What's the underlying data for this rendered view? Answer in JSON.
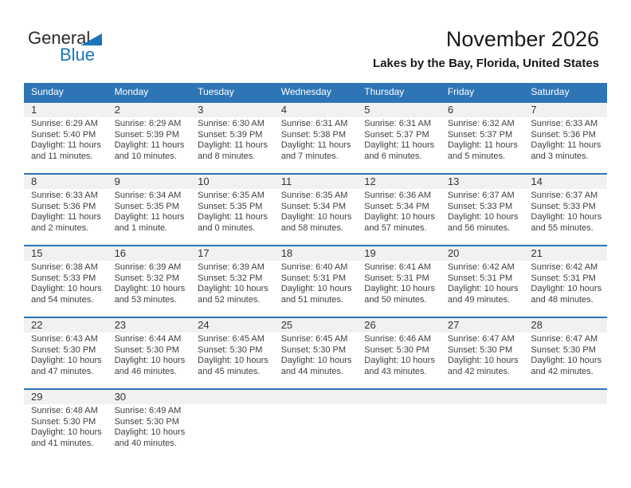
{
  "header": {
    "logo": {
      "line1": "General",
      "line2": "Blue"
    },
    "title": "November 2026",
    "subtitle": "Lakes by the Bay, Florida, United States"
  },
  "colors": {
    "header_blue": "#2E75B6",
    "band_gray": "#F1F1F1",
    "logo_blue": "#1B75BC",
    "body_text": "#3F3F3F"
  },
  "calendar": {
    "weekday_headers": [
      "Sunday",
      "Monday",
      "Tuesday",
      "Wednesday",
      "Thursday",
      "Friday",
      "Saturday"
    ],
    "weeks": [
      [
        {
          "day": "1",
          "lines": [
            "Sunrise: 6:29 AM",
            "Sunset: 5:40 PM",
            "Daylight: 11 hours",
            "and 11 minutes."
          ]
        },
        {
          "day": "2",
          "lines": [
            "Sunrise: 6:29 AM",
            "Sunset: 5:39 PM",
            "Daylight: 11 hours",
            "and 10 minutes."
          ]
        },
        {
          "day": "3",
          "lines": [
            "Sunrise: 6:30 AM",
            "Sunset: 5:39 PM",
            "Daylight: 11 hours",
            "and 8 minutes."
          ]
        },
        {
          "day": "4",
          "lines": [
            "Sunrise: 6:31 AM",
            "Sunset: 5:38 PM",
            "Daylight: 11 hours",
            "and 7 minutes."
          ]
        },
        {
          "day": "5",
          "lines": [
            "Sunrise: 6:31 AM",
            "Sunset: 5:37 PM",
            "Daylight: 11 hours",
            "and 6 minutes."
          ]
        },
        {
          "day": "6",
          "lines": [
            "Sunrise: 6:32 AM",
            "Sunset: 5:37 PM",
            "Daylight: 11 hours",
            "and 5 minutes."
          ]
        },
        {
          "day": "7",
          "lines": [
            "Sunrise: 6:33 AM",
            "Sunset: 5:36 PM",
            "Daylight: 11 hours",
            "and 3 minutes."
          ]
        }
      ],
      [
        {
          "day": "8",
          "lines": [
            "Sunrise: 6:33 AM",
            "Sunset: 5:36 PM",
            "Daylight: 11 hours",
            "and 2 minutes."
          ]
        },
        {
          "day": "9",
          "lines": [
            "Sunrise: 6:34 AM",
            "Sunset: 5:35 PM",
            "Daylight: 11 hours",
            "and 1 minute."
          ]
        },
        {
          "day": "10",
          "lines": [
            "Sunrise: 6:35 AM",
            "Sunset: 5:35 PM",
            "Daylight: 11 hours",
            "and 0 minutes."
          ]
        },
        {
          "day": "11",
          "lines": [
            "Sunrise: 6:35 AM",
            "Sunset: 5:34 PM",
            "Daylight: 10 hours",
            "and 58 minutes."
          ]
        },
        {
          "day": "12",
          "lines": [
            "Sunrise: 6:36 AM",
            "Sunset: 5:34 PM",
            "Daylight: 10 hours",
            "and 57 minutes."
          ]
        },
        {
          "day": "13",
          "lines": [
            "Sunrise: 6:37 AM",
            "Sunset: 5:33 PM",
            "Daylight: 10 hours",
            "and 56 minutes."
          ]
        },
        {
          "day": "14",
          "lines": [
            "Sunrise: 6:37 AM",
            "Sunset: 5:33 PM",
            "Daylight: 10 hours",
            "and 55 minutes."
          ]
        }
      ],
      [
        {
          "day": "15",
          "lines": [
            "Sunrise: 6:38 AM",
            "Sunset: 5:33 PM",
            "Daylight: 10 hours",
            "and 54 minutes."
          ]
        },
        {
          "day": "16",
          "lines": [
            "Sunrise: 6:39 AM",
            "Sunset: 5:32 PM",
            "Daylight: 10 hours",
            "and 53 minutes."
          ]
        },
        {
          "day": "17",
          "lines": [
            "Sunrise: 6:39 AM",
            "Sunset: 5:32 PM",
            "Daylight: 10 hours",
            "and 52 minutes."
          ]
        },
        {
          "day": "18",
          "lines": [
            "Sunrise: 6:40 AM",
            "Sunset: 5:31 PM",
            "Daylight: 10 hours",
            "and 51 minutes."
          ]
        },
        {
          "day": "19",
          "lines": [
            "Sunrise: 6:41 AM",
            "Sunset: 5:31 PM",
            "Daylight: 10 hours",
            "and 50 minutes."
          ]
        },
        {
          "day": "20",
          "lines": [
            "Sunrise: 6:42 AM",
            "Sunset: 5:31 PM",
            "Daylight: 10 hours",
            "and 49 minutes."
          ]
        },
        {
          "day": "21",
          "lines": [
            "Sunrise: 6:42 AM",
            "Sunset: 5:31 PM",
            "Daylight: 10 hours",
            "and 48 minutes."
          ]
        }
      ],
      [
        {
          "day": "22",
          "lines": [
            "Sunrise: 6:43 AM",
            "Sunset: 5:30 PM",
            "Daylight: 10 hours",
            "and 47 minutes."
          ]
        },
        {
          "day": "23",
          "lines": [
            "Sunrise: 6:44 AM",
            "Sunset: 5:30 PM",
            "Daylight: 10 hours",
            "and 46 minutes."
          ]
        },
        {
          "day": "24",
          "lines": [
            "Sunrise: 6:45 AM",
            "Sunset: 5:30 PM",
            "Daylight: 10 hours",
            "and 45 minutes."
          ]
        },
        {
          "day": "25",
          "lines": [
            "Sunrise: 6:45 AM",
            "Sunset: 5:30 PM",
            "Daylight: 10 hours",
            "and 44 minutes."
          ]
        },
        {
          "day": "26",
          "lines": [
            "Sunrise: 6:46 AM",
            "Sunset: 5:30 PM",
            "Daylight: 10 hours",
            "and 43 minutes."
          ]
        },
        {
          "day": "27",
          "lines": [
            "Sunrise: 6:47 AM",
            "Sunset: 5:30 PM",
            "Daylight: 10 hours",
            "and 42 minutes."
          ]
        },
        {
          "day": "28",
          "lines": [
            "Sunrise: 6:47 AM",
            "Sunset: 5:30 PM",
            "Daylight: 10 hours",
            "and 42 minutes."
          ]
        }
      ],
      [
        {
          "day": "29",
          "lines": [
            "Sunrise: 6:48 AM",
            "Sunset: 5:30 PM",
            "Daylight: 10 hours",
            "and 41 minutes."
          ]
        },
        {
          "day": "30",
          "lines": [
            "Sunrise: 6:49 AM",
            "Sunset: 5:30 PM",
            "Daylight: 10 hours",
            "and 40 minutes."
          ]
        },
        null,
        null,
        null,
        null,
        null
      ]
    ]
  }
}
